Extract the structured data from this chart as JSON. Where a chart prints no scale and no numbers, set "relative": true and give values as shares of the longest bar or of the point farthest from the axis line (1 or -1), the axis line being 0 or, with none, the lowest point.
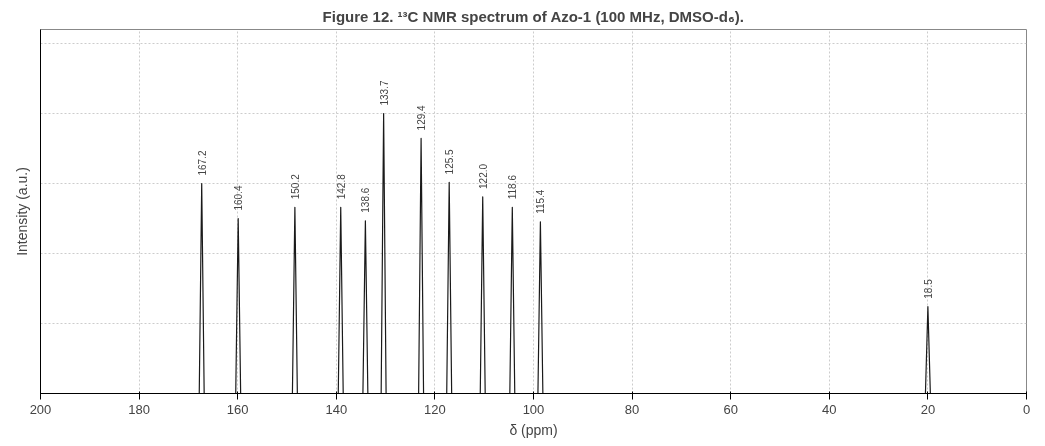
{
  "chart_data": {
    "type": "line",
    "title": "Figure 12. ¹³C NMR spectrum of Azo-1 (100 MHz, DMSO-d₆).",
    "xlabel": "δ (ppm)",
    "ylabel": "Intensity (a.u.)",
    "relative": true,
    "xlim": [
      200,
      0
    ],
    "xticks": [
      200,
      180,
      160,
      140,
      120,
      100,
      80,
      60,
      40,
      20,
      0
    ],
    "grid": true,
    "marker": "none",
    "series": [
      {
        "color": "#1a1a1a",
        "x": [
          200,
          167.8,
          167.3,
          166.8,
          160.4,
          159.9,
          159.4,
          148.9,
          148.4,
          147.9,
          139.6,
          139.1,
          138.6,
          134.6,
          134.1,
          133.6,
          130.9,
          130.4,
          129.9,
          123.3,
          122.8,
          122.3,
          117.6,
          117.1,
          116.6,
          110.8,
          110.3,
          109.8,
          104.8,
          104.3,
          103.8,
          99.1,
          98.6,
          98.1,
          20.5,
          20.0,
          19.5,
          0
        ],
        "values": [
          0,
          0,
          0.75,
          0,
          0,
          0.625,
          0,
          0,
          0.665,
          0,
          0,
          0.665,
          0,
          0,
          0.617,
          0,
          0,
          1,
          0,
          0,
          0.911,
          0,
          0,
          0.754,
          0,
          0,
          0.702,
          0,
          0,
          0.665,
          0,
          0,
          0.613,
          0,
          0,
          0.31,
          0,
          0
        ]
      }
    ],
    "annotations": [
      {
        "text": "167.2",
        "x": 167.3,
        "y": 0.75
      },
      {
        "text": "160.4",
        "x": 159.9,
        "y": 0.625
      },
      {
        "text": "150.2",
        "x": 148.4,
        "y": 0.665
      },
      {
        "text": "142.8",
        "x": 139.1,
        "y": 0.665
      },
      {
        "text": "138.6",
        "x": 134.1,
        "y": 0.617
      },
      {
        "text": "133.7",
        "x": 130.4,
        "y": 1
      },
      {
        "text": "129.4",
        "x": 122.8,
        "y": 0.911
      },
      {
        "text": "125.5",
        "x": 117.1,
        "y": 0.754
      },
      {
        "text": "122.0",
        "x": 110.3,
        "y": 0.702
      },
      {
        "text": "118.6",
        "x": 104.3,
        "y": 0.665
      },
      {
        "text": "115.4",
        "x": 98.6,
        "y": 0.613
      },
      {
        "text": "18.5",
        "x": 20.0,
        "y": 0.31
      }
    ]
  }
}
